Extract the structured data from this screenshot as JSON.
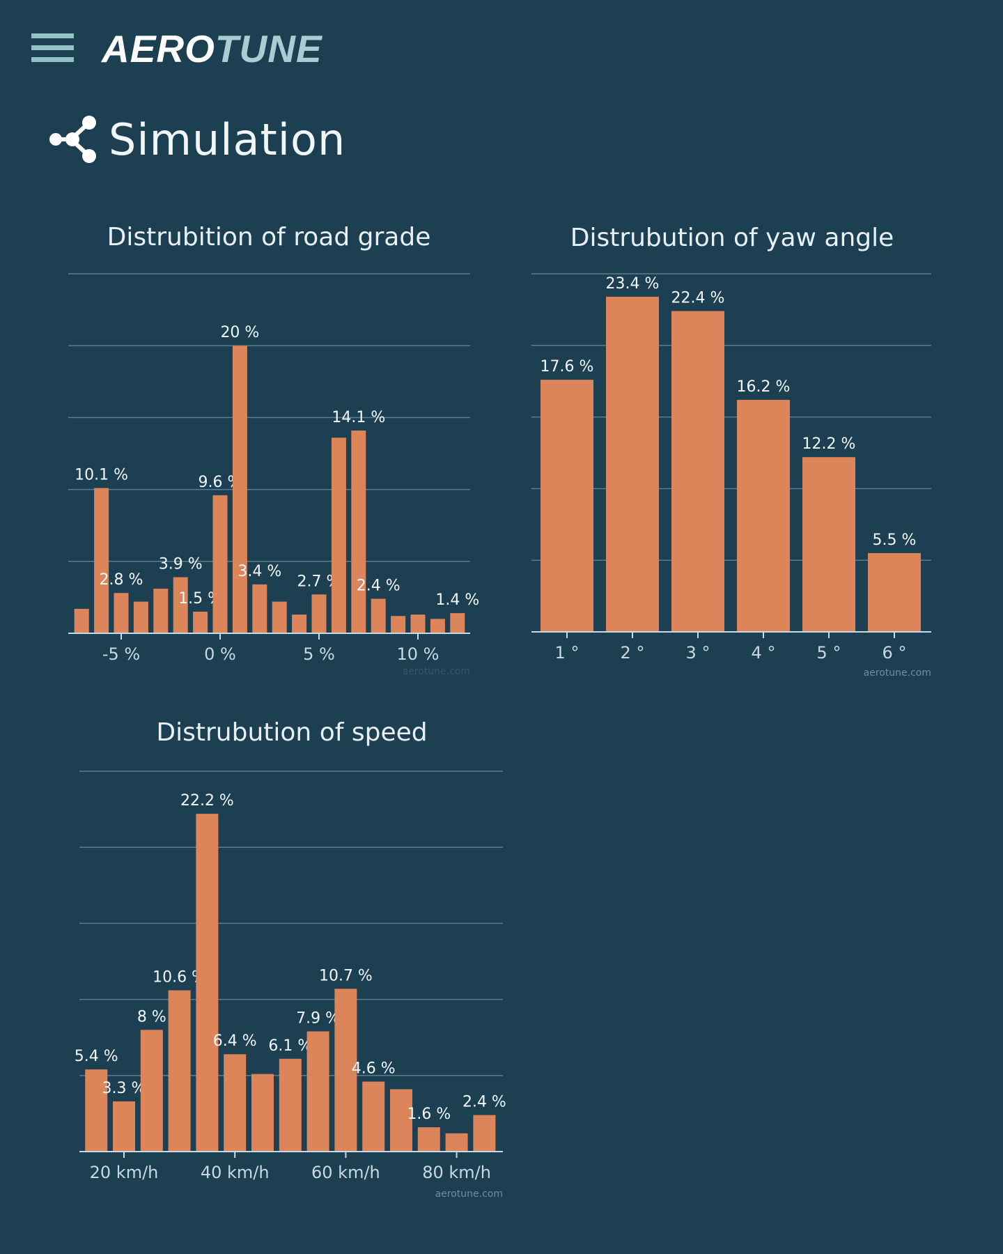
{
  "header": {
    "menu_icon": "hamburger-icon",
    "logo_part1": "AERO",
    "logo_part2": "TUNE"
  },
  "page": {
    "title": "Simulation",
    "icon": "share-nodes-icon"
  },
  "colors": {
    "background": "#1c3f52",
    "bar": "#dc845a",
    "grid": "#5a7e92",
    "logo_accent": "#a9cdd3"
  },
  "chart_data": [
    {
      "type": "bar",
      "title": "Distrubition of road grade",
      "x": [
        -7,
        -6,
        -5,
        -4,
        -3,
        -2,
        -1,
        0,
        1,
        2,
        3,
        4,
        5,
        6,
        7,
        8,
        9,
        10,
        11,
        12
      ],
      "values": [
        1.7,
        10.1,
        2.8,
        2.2,
        3.1,
        3.9,
        1.5,
        9.6,
        20,
        3.4,
        2.2,
        1.3,
        2.7,
        13.6,
        14.1,
        2.4,
        1.2,
        1.3,
        1.0,
        1.4
      ],
      "labels": [
        null,
        "10.1 %",
        "2.8 %",
        null,
        null,
        "3.9 %",
        "1.5 %",
        "9.6 %",
        "20 %",
        "3.4 %",
        null,
        null,
        "2.7 %",
        null,
        "14.1 %",
        "2.4 %",
        null,
        null,
        null,
        "1.4 %"
      ],
      "xticks": [
        -5,
        0,
        5,
        10
      ],
      "xtick_labels": [
        "-5 %",
        "0 %",
        "5 %",
        "10 %"
      ],
      "ylim": [
        0,
        25
      ],
      "grid_step": 5,
      "grid": true,
      "watermark": "aerotune.com"
    },
    {
      "type": "bar",
      "title": "Distrubution of yaw angle",
      "categories": [
        "1 °",
        "2 °",
        "3 °",
        "4 °",
        "5 °",
        "6 °"
      ],
      "values": [
        17.6,
        23.4,
        22.4,
        16.2,
        12.2,
        5.5
      ],
      "labels": [
        "17.6 %",
        "23.4 %",
        "22.4 %",
        "16.2 %",
        "12.2 %",
        "5.5 %"
      ],
      "ylim": [
        0,
        25
      ],
      "grid_step": 5,
      "grid": true,
      "watermark": "aerotune.com"
    },
    {
      "type": "bar",
      "title": "Distrubution of speed",
      "x": [
        15,
        20,
        25,
        30,
        35,
        40,
        45,
        50,
        55,
        60,
        65,
        70,
        75,
        80,
        85
      ],
      "values": [
        5.4,
        3.3,
        8,
        10.6,
        22.2,
        6.4,
        5.1,
        6.1,
        7.9,
        10.7,
        4.6,
        4.1,
        1.6,
        1.2,
        2.4
      ],
      "labels": [
        "5.4 %",
        "3.3 %",
        "8 %",
        "10.6 %",
        "22.2 %",
        "6.4 %",
        null,
        "6.1 %",
        "7.9 %",
        "10.7 %",
        "4.6 %",
        null,
        "1.6 %",
        null,
        "2.4 %"
      ],
      "xticks": [
        20,
        40,
        60,
        80
      ],
      "xtick_labels": [
        "20 km/h",
        "40 km/h",
        "60 km/h",
        "80 km/h"
      ],
      "ylim": [
        0,
        25
      ],
      "grid_step": 5,
      "grid": true,
      "watermark": "aerotune.com"
    }
  ]
}
